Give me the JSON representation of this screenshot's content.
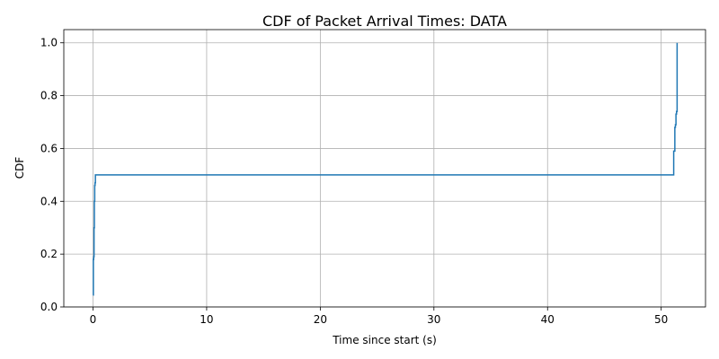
{
  "chart_data": {
    "type": "line",
    "title": "CDF of Packet Arrival Times: DATA",
    "xlabel": "Time since start (s)",
    "ylabel": "CDF",
    "xlim": [
      -2.57,
      53.9
    ],
    "ylim": [
      0.0,
      1.05
    ],
    "xticks": [
      0,
      10,
      20,
      30,
      40,
      50
    ],
    "xtick_labels": [
      "0",
      "10",
      "20",
      "30",
      "40",
      "50"
    ],
    "yticks": [
      0.0,
      0.2,
      0.4,
      0.6,
      0.8,
      1.0
    ],
    "ytick_labels": [
      "0.0",
      "0.2",
      "0.4",
      "0.6",
      "0.8",
      "1.0"
    ],
    "grid": true,
    "series": [
      {
        "name": "DATA",
        "color": "#1f77b4",
        "step": "post",
        "x": [
          0.0,
          0.03,
          0.06,
          0.09,
          0.12,
          0.15,
          0.18,
          0.21,
          51.1,
          51.2,
          51.25,
          51.3,
          51.35,
          51.4
        ],
        "y": [
          0.045,
          0.18,
          0.19,
          0.3,
          0.4,
          0.46,
          0.47,
          0.5,
          0.59,
          0.68,
          0.69,
          0.73,
          0.74,
          1.0
        ]
      }
    ]
  }
}
